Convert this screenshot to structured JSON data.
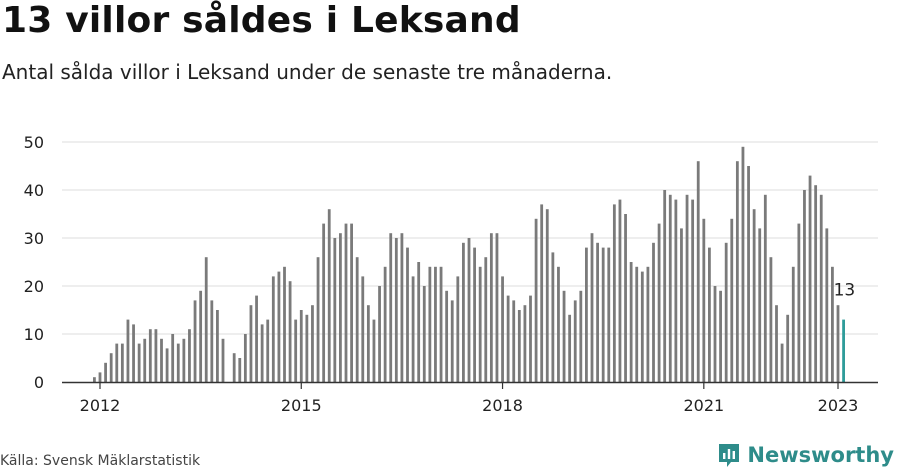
{
  "title": "13 villor såldes i Leksand",
  "subtitle": "Antal sålda villor i Leksand under de senaste tre månaderna.",
  "source": "Källa: Svensk Mäklarstatistik",
  "brand": "Newsworthy",
  "icon": "newsworthy-logo-icon",
  "colors": {
    "bar": "#7a7a7a",
    "highlight": "#2e9c9a",
    "grid": "#dddddd",
    "axis": "#333333",
    "brand": "#2e8c8a"
  },
  "chart_data": {
    "type": "bar",
    "title": "13 villor såldes i Leksand",
    "xlabel": "",
    "ylabel": "",
    "ylim": [
      0,
      50
    ],
    "yticks": [
      0,
      10,
      20,
      30,
      40,
      50
    ],
    "xticks": [
      {
        "label": "2012",
        "x": "2012-01"
      },
      {
        "label": "2015",
        "x": "2015-01"
      },
      {
        "label": "2018",
        "x": "2018-01"
      },
      {
        "label": "2021",
        "x": "2021-01"
      },
      {
        "label": "2023",
        "x": "2023-01"
      }
    ],
    "x_start": "2011-12",
    "values": [
      1,
      2,
      4,
      6,
      8,
      8,
      13,
      12,
      8,
      9,
      11,
      11,
      9,
      7,
      10,
      8,
      9,
      11,
      17,
      19,
      26,
      17,
      15,
      9,
      0,
      6,
      5,
      10,
      16,
      18,
      12,
      13,
      22,
      23,
      24,
      21,
      13,
      15,
      14,
      16,
      26,
      33,
      36,
      30,
      31,
      33,
      33,
      26,
      22,
      16,
      13,
      20,
      24,
      31,
      30,
      31,
      28,
      22,
      25,
      20,
      24,
      24,
      24,
      19,
      17,
      22,
      29,
      30,
      28,
      24,
      26,
      31,
      31,
      22,
      18,
      17,
      15,
      16,
      18,
      34,
      37,
      36,
      27,
      24,
      19,
      14,
      17,
      19,
      28,
      31,
      29,
      28,
      28,
      37,
      38,
      35,
      25,
      24,
      23,
      24,
      29,
      33,
      40,
      39,
      38,
      32,
      39,
      38,
      46,
      34,
      28,
      20,
      19,
      29,
      34,
      46,
      49,
      45,
      36,
      32,
      39,
      26,
      16,
      8,
      14,
      24,
      33,
      40,
      43,
      41,
      39,
      32,
      24,
      16,
      13
    ],
    "highlight_last": true,
    "annotation": "13"
  }
}
